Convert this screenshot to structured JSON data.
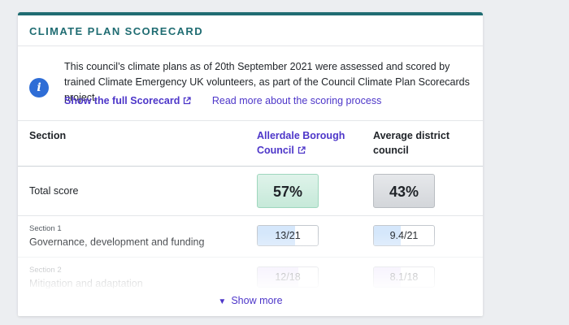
{
  "card": {
    "title": "CLIMATE PLAN SCORECARD"
  },
  "intro": {
    "text": "This council’s climate plans as of 20th September 2021 were assessed and scored by trained Climate Emergency UK volunteers, as part of the Council Climate Plan Scorecards project.",
    "full_scorecard_link": "Show the full Scorecard",
    "scoring_link": "Read more about the scoring process"
  },
  "table": {
    "headers": {
      "section": "Section",
      "council": "Allerdale Borough Council",
      "average": "Average district council"
    },
    "total": {
      "label": "Total score",
      "council_score": "57%",
      "average_score": "43%"
    },
    "rows": [
      {
        "sub": "Section 1",
        "label": "Governance, development and funding",
        "council_score": "13/21",
        "council_fraction": 0.62,
        "average_score": "9.4/21",
        "average_fraction": 0.45
      },
      {
        "sub": "Section 2",
        "label": "Mitigation and adaptation",
        "council_score": "12/18",
        "council_fraction": 0.67,
        "average_score": "8.1/18",
        "average_fraction": 0.45
      }
    ]
  },
  "show_more": "Show more",
  "colors": {
    "accent": "#1f6c72",
    "link": "#4d36c9",
    "info": "#2e6dd6"
  }
}
